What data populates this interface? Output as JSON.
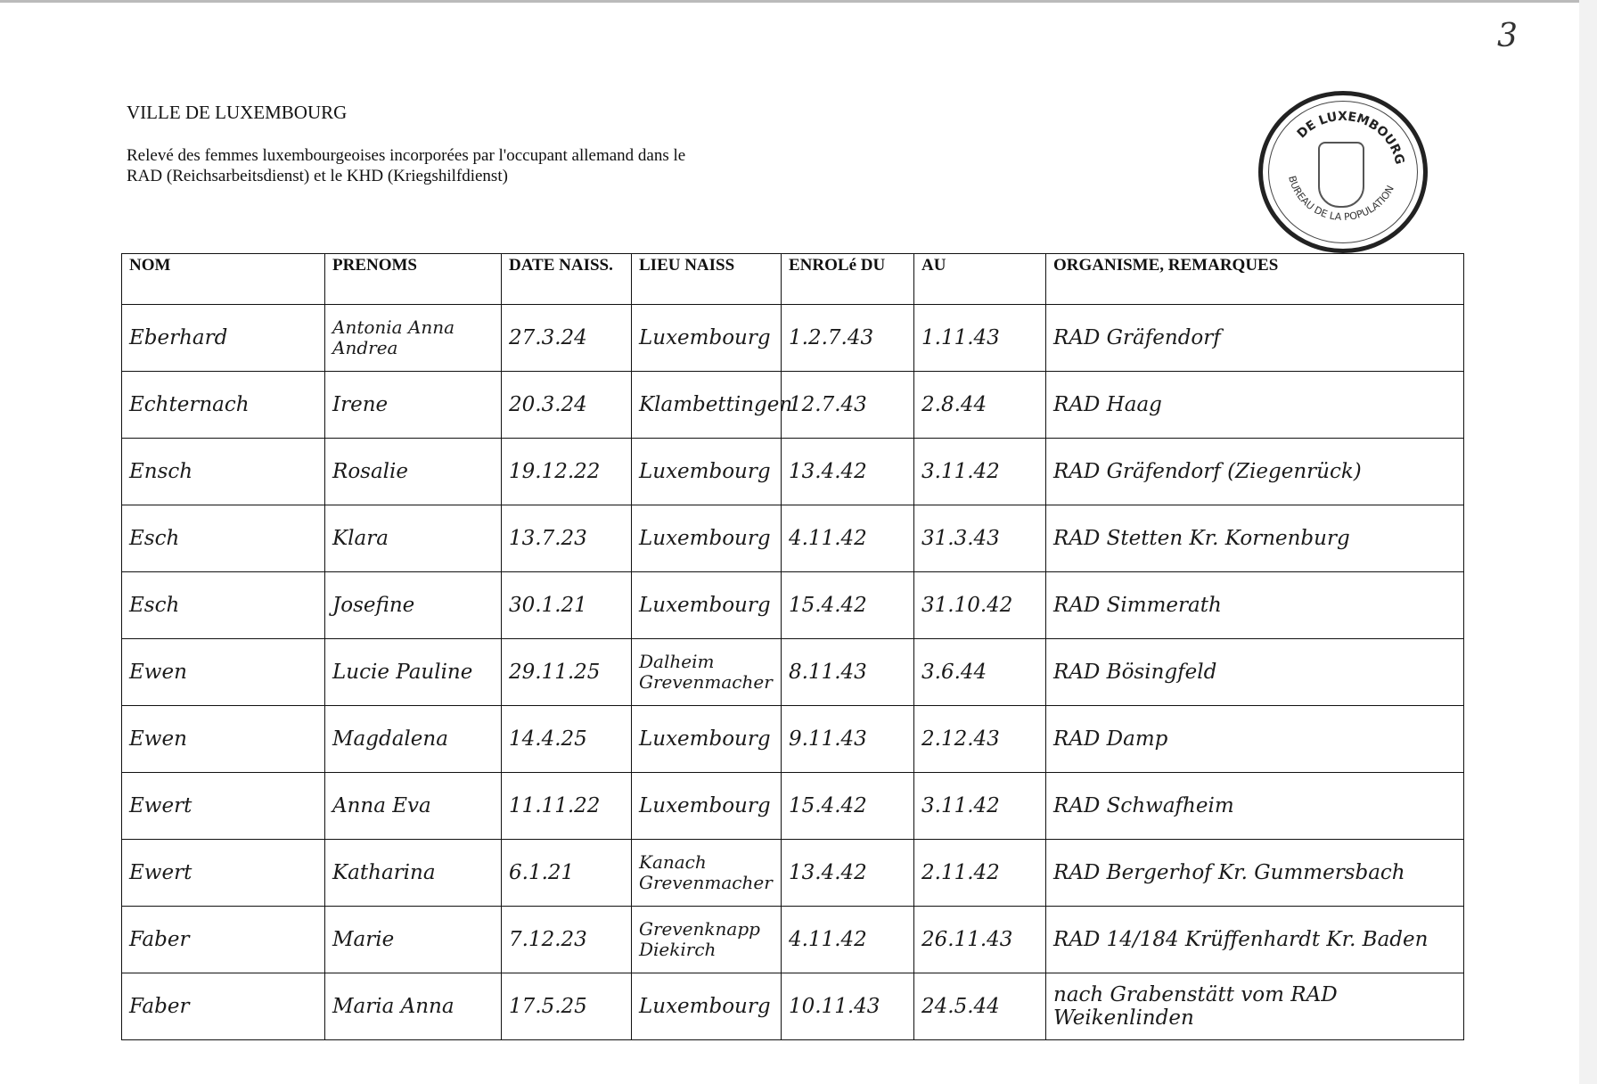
{
  "page_number": "3",
  "header": {
    "organization": "VILLE DE LUXEMBOURG",
    "title_line1": "Relevé des femmes luxembourgeoises incorporées par l'occupant allemand dans le",
    "title_line2": "RAD (Reichsarbeitsdienst) et le KHD (Kriegshilfdienst)"
  },
  "stamp": {
    "text_top": "DE LUXEMBOURG",
    "text_bottom": "BUREAU DE LA POPULATION"
  },
  "table": {
    "columns": [
      "NOM",
      "PRENOMS",
      "DATE NAISS.",
      "LIEU NAISS",
      "ENROLé DU",
      "AU",
      "ORGANISME, REMARQUES"
    ],
    "rows": [
      [
        "Eberhard",
        "Antonia Anna Andrea",
        "27.3.24",
        "Luxembourg",
        "1.2.7.43",
        "1.11.43",
        "RAD Gräfendorf"
      ],
      [
        "Echternach",
        "Irene",
        "20.3.24",
        "Klambettingen",
        "12.7.43",
        "2.8.44",
        "RAD Haag"
      ],
      [
        "Ensch",
        "Rosalie",
        "19.12.22",
        "Luxembourg",
        "13.4.42",
        "3.11.42",
        "RAD Gräfendorf (Ziegenrück)"
      ],
      [
        "Esch",
        "Klara",
        "13.7.23",
        "Luxembourg",
        "4.11.42",
        "31.3.43",
        "RAD Stetten Kr. Kornenburg"
      ],
      [
        "Esch",
        "Josefine",
        "30.1.21",
        "Luxembourg",
        "15.4.42",
        "31.10.42",
        "RAD Simmerath"
      ],
      [
        "Ewen",
        "Lucie Pauline",
        "29.11.25",
        "Dalheim Grevenmacher",
        "8.11.43",
        "3.6.44",
        "RAD Bösingfeld"
      ],
      [
        "Ewen",
        "Magdalena",
        "14.4.25",
        "Luxembourg",
        "9.11.43",
        "2.12.43",
        "RAD Damp"
      ],
      [
        "Ewert",
        "Anna Eva",
        "11.11.22",
        "Luxembourg",
        "15.4.42",
        "3.11.42",
        "RAD Schwafheim"
      ],
      [
        "Ewert",
        "Katharina",
        "6.1.21",
        "Kanach Grevenmacher",
        "13.4.42",
        "2.11.42",
        "RAD Bergerhof Kr. Gummersbach"
      ],
      [
        "Faber",
        "Marie",
        "7.12.23",
        "Grevenknapp Diekirch",
        "4.11.42",
        "26.11.43",
        "RAD 14/184 Krüffenhardt Kr. Baden"
      ],
      [
        "Faber",
        "Maria Anna",
        "17.5.25",
        "Luxembourg",
        "10.11.43",
        "24.5.44",
        "nach Grabenstätt vom RAD Weikenlinden"
      ]
    ]
  }
}
